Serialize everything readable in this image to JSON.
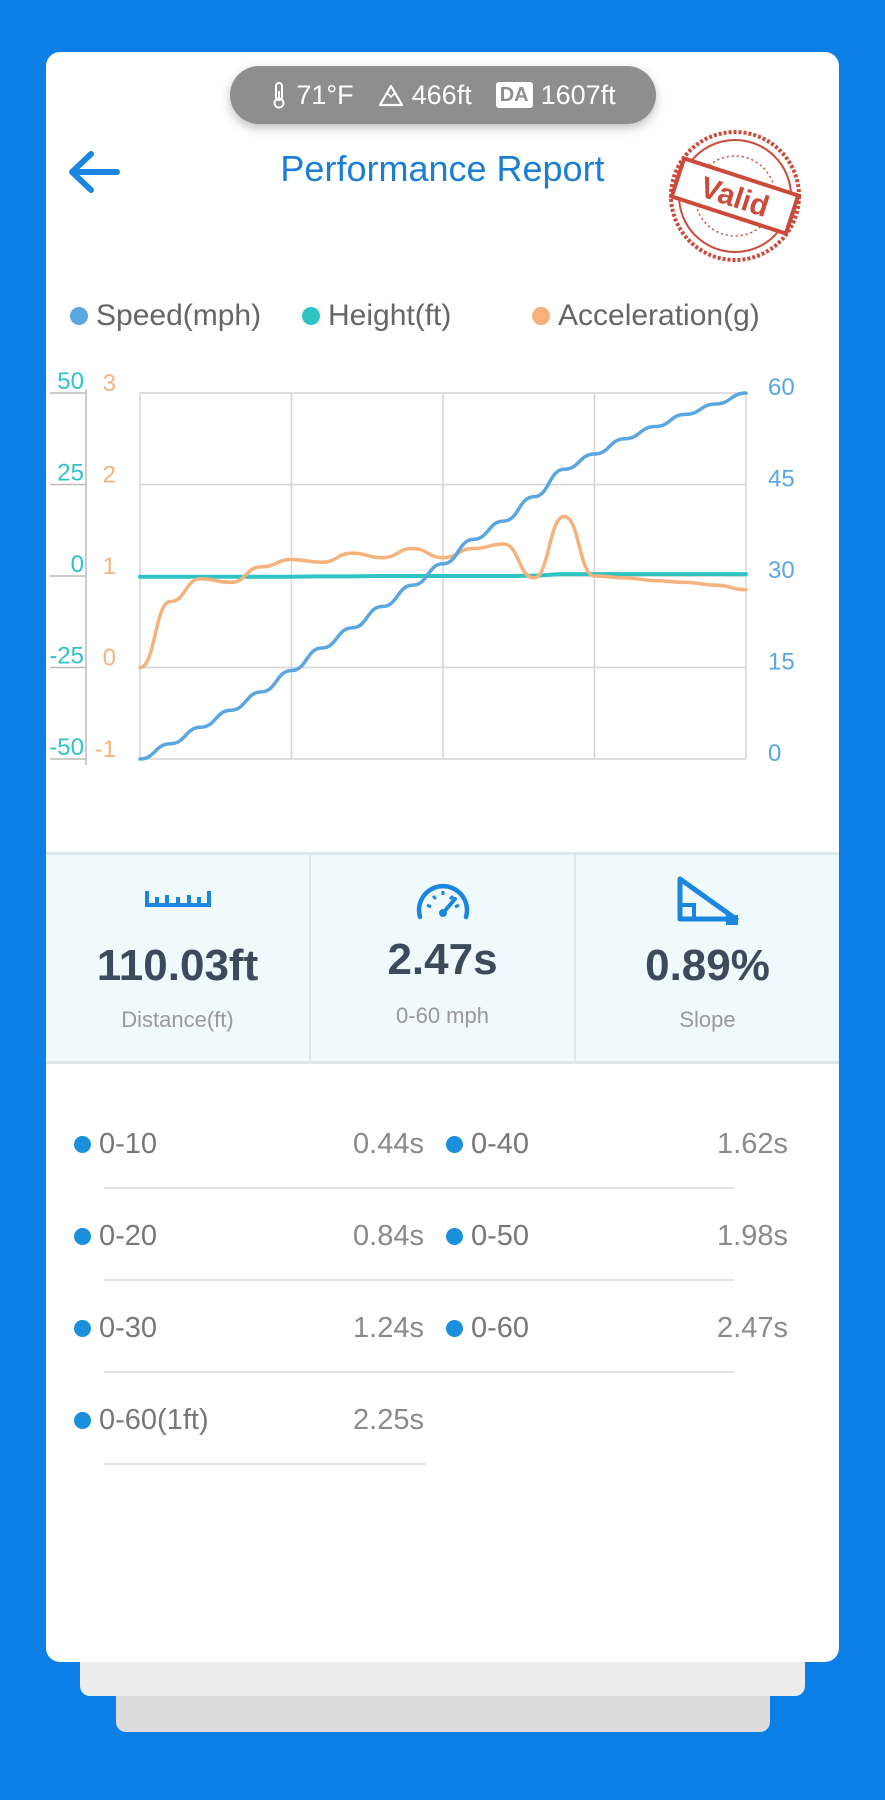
{
  "env": {
    "temperature": "71°F",
    "altitude": "466ft",
    "density_altitude_label": "DA",
    "density_altitude": "1607ft"
  },
  "header": {
    "title": "Performance Report",
    "stamp_text": "Valid"
  },
  "legend": [
    {
      "label": "Speed(mph)",
      "color": "#5aa7e0"
    },
    {
      "label": "Height(ft)",
      "color": "#2ec4c4"
    },
    {
      "label": "Acceleration(g)",
      "color": "#f5b27c"
    }
  ],
  "chart_data": {
    "type": "line",
    "x": [
      0.0,
      0.05,
      0.1,
      0.15,
      0.2,
      0.25,
      0.3,
      0.35,
      0.4,
      0.45,
      0.5,
      0.55,
      0.6,
      0.65,
      0.7,
      0.75,
      0.8,
      0.85,
      0.9,
      0.95,
      1.0
    ],
    "series": [
      {
        "name": "Speed(mph)",
        "axis": "right",
        "color": "#5aa7e0",
        "values": [
          0,
          2.5,
          5.2,
          8.0,
          11.0,
          14.5,
          18.2,
          21.5,
          25.0,
          28.5,
          32.0,
          36.0,
          39.0,
          43.0,
          47.5,
          50.0,
          52.5,
          54.5,
          56.5,
          58.2,
          60.0
        ]
      },
      {
        "name": "Height(ft)",
        "axis": "left-outer",
        "color": "#2ec4c4",
        "values": [
          -0.2,
          -0.2,
          -0.2,
          -0.2,
          -0.2,
          -0.2,
          -0.1,
          -0.1,
          0.0,
          0.0,
          0.0,
          0.0,
          0.0,
          0.1,
          0.5,
          0.5,
          0.5,
          0.5,
          0.5,
          0.5,
          0.5
        ]
      },
      {
        "name": "Acceleration(g)",
        "axis": "left-inner",
        "color": "#f5b27c",
        "values": [
          0.0,
          0.72,
          0.97,
          0.93,
          1.1,
          1.18,
          1.15,
          1.25,
          1.2,
          1.3,
          1.2,
          1.3,
          1.35,
          0.98,
          1.65,
          1.0,
          0.98,
          0.95,
          0.93,
          0.9,
          0.85
        ]
      }
    ],
    "axes": {
      "right": {
        "ticks": [
          "0",
          "15",
          "30",
          "45",
          "60"
        ],
        "range": [
          0,
          60
        ]
      },
      "left_outer": {
        "ticks": [
          "-50",
          "-25",
          "0",
          "25",
          "50"
        ],
        "range": [
          -50,
          50
        ]
      },
      "left_inner": {
        "ticks": [
          "-1",
          "0",
          "1",
          "2",
          "3"
        ],
        "range": [
          -1,
          3
        ]
      }
    },
    "grid": true
  },
  "stats": [
    {
      "value": "110.03ft",
      "label": "Distance(ft)",
      "icon": "ruler-icon"
    },
    {
      "value": "2.47s",
      "label": "0-60 mph",
      "icon": "speedometer-icon"
    },
    {
      "value": "0.89%",
      "label": "Slope",
      "icon": "slope-icon"
    }
  ],
  "splits": [
    {
      "label": "0-10",
      "value": "0.44s"
    },
    {
      "label": "0-40",
      "value": "1.62s"
    },
    {
      "label": "0-20",
      "value": "0.84s"
    },
    {
      "label": "0-50",
      "value": "1.98s"
    },
    {
      "label": "0-30",
      "value": "1.24s"
    },
    {
      "label": "0-60",
      "value": "2.47s"
    },
    {
      "label": "0-60(1ft)",
      "value": "2.25s"
    }
  ]
}
